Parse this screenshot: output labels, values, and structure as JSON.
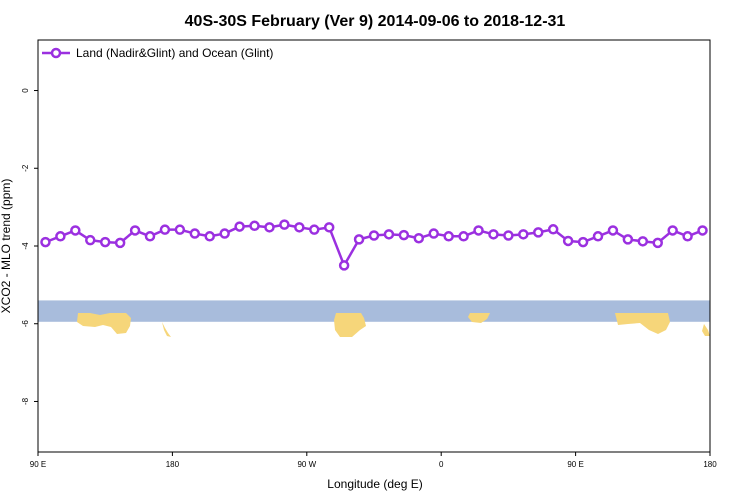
{
  "chart_data": {
    "type": "line",
    "title": "40S-30S February (Ver 9)   2014-09-06 to 2018-12-31",
    "xlabel": "Longitude (deg E)",
    "ylabel": "XCO2 - MLO trend (ppm)",
    "xlim": [
      90,
      540
    ],
    "ylim": [
      -9.3,
      1.3
    ],
    "x_ticks": [
      {
        "value": 90,
        "label": "90 E"
      },
      {
        "value": 180,
        "label": "180"
      },
      {
        "value": 270,
        "label": "90 W"
      },
      {
        "value": 360,
        "label": "0"
      },
      {
        "value": 450,
        "label": "90 E"
      },
      {
        "value": 540,
        "label": "180"
      }
    ],
    "y_ticks": [
      {
        "value": 0,
        "label": "0"
      },
      {
        "value": -2,
        "label": "-2"
      },
      {
        "value": -4,
        "label": "-4"
      },
      {
        "value": -6,
        "label": "-6"
      },
      {
        "value": -8,
        "label": "-8"
      }
    ],
    "grid": false,
    "legend_position": "top-left",
    "series": [
      {
        "name": "Land (Nadir&Glint) and Ocean (Glint)",
        "color": "#9B30E0",
        "x": [
          95,
          105,
          115,
          125,
          135,
          145,
          155,
          165,
          175,
          185,
          195,
          205,
          215,
          225,
          235,
          245,
          255,
          265,
          275,
          285,
          295,
          305,
          315,
          325,
          335,
          345,
          355,
          365,
          375,
          385,
          395,
          405,
          415,
          425,
          435,
          445,
          455,
          465,
          475,
          485,
          495,
          505,
          515,
          525,
          535
        ],
        "y": [
          -3.9,
          -3.75,
          -3.6,
          -3.85,
          -3.9,
          -3.92,
          -3.6,
          -3.75,
          -3.58,
          -3.58,
          -3.68,
          -3.75,
          -3.68,
          -3.5,
          -3.48,
          -3.52,
          -3.45,
          -3.52,
          -3.58,
          -3.52,
          -4.5,
          -3.83,
          -3.73,
          -3.7,
          -3.72,
          -3.8,
          -3.68,
          -3.75,
          -3.75,
          -3.6,
          -3.7,
          -3.73,
          -3.7,
          -3.65,
          -3.57,
          -3.87,
          -3.9,
          -3.75,
          -3.6,
          -3.83,
          -3.88,
          -3.92,
          -3.6,
          -3.75,
          -3.6
        ]
      }
    ],
    "map_strip": {
      "y_range": [
        -5.4,
        -5.95
      ],
      "ocean_color": "#A8BCDC",
      "land_color": "#F6D67A"
    }
  }
}
